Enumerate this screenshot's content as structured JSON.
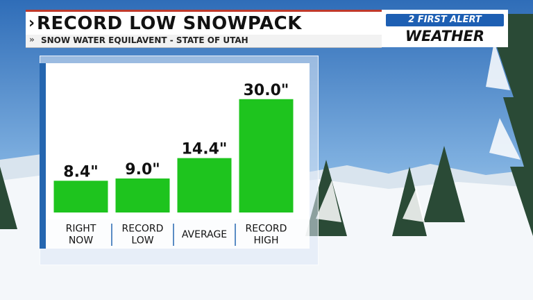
{
  "header": {
    "title": "RECORD LOW SNOWPACK",
    "subtitle": "SNOW WATER EQUILAVENT - STATE OF UTAH"
  },
  "brand": {
    "line1": "2 FIRST ALERT",
    "line2": "WEATHER"
  },
  "colors": {
    "bar": "#1ec41e",
    "accent": "#2566b0",
    "title_rule": "#c0392b"
  },
  "chart_data": {
    "type": "bar",
    "categories": [
      [
        "RIGHT",
        "NOW"
      ],
      [
        "RECORD",
        "LOW"
      ],
      [
        "AVERAGE"
      ],
      [
        "RECORD",
        "HIGH"
      ]
    ],
    "values": [
      8.4,
      9.0,
      14.4,
      30.0
    ],
    "value_labels": [
      "8.4\"",
      "9.0\"",
      "14.4\"",
      "30.0\""
    ],
    "ylim": [
      0,
      34
    ]
  }
}
